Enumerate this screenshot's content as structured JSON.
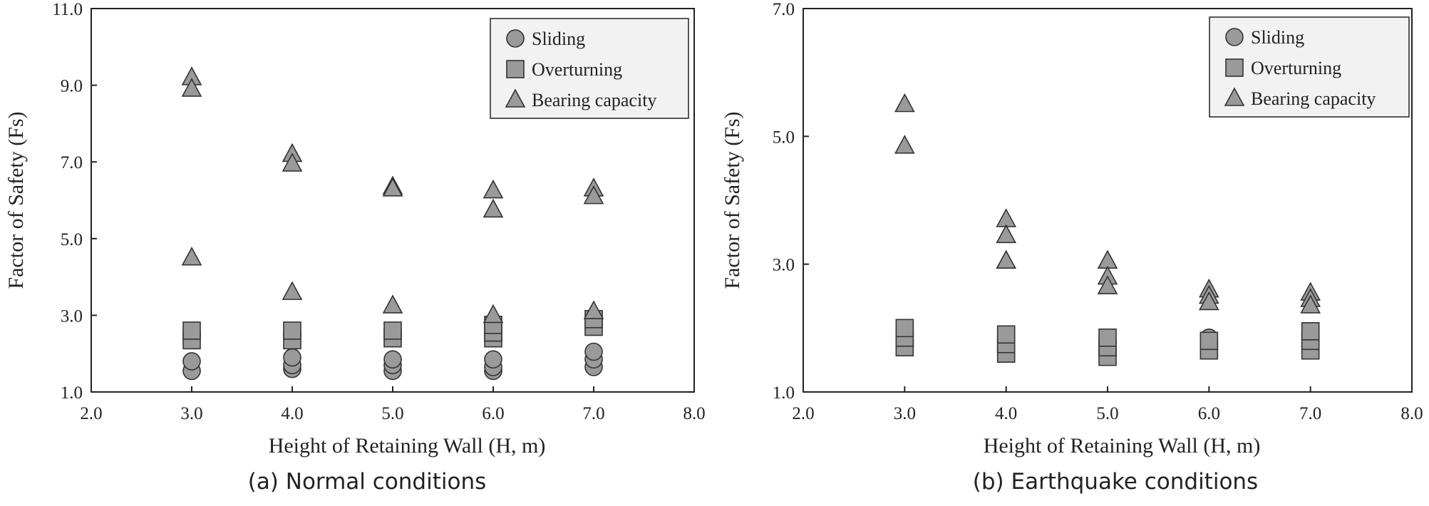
{
  "chart_data": [
    {
      "type": "scatter",
      "caption": "(a) Normal conditions",
      "xlabel": "Height of Retaining Wall (H, m)",
      "ylabel": "Factor of Safety (Fs)",
      "xlim": [
        2.0,
        8.0
      ],
      "ylim": [
        1.0,
        11.0
      ],
      "xticks": [
        "2.0",
        "3.0",
        "4.0",
        "5.0",
        "6.0",
        "7.0",
        "8.0"
      ],
      "yticks": [
        "1.0",
        "3.0",
        "5.0",
        "7.0",
        "9.0",
        "11.0"
      ],
      "legend_position": "top-right",
      "grid": false,
      "series": [
        {
          "name": "Sliding",
          "marker": "circle",
          "points": [
            [
              3,
              1.55
            ],
            [
              3,
              1.8
            ],
            [
              4,
              1.6
            ],
            [
              4,
              1.7
            ],
            [
              4,
              1.9
            ],
            [
              5,
              1.55
            ],
            [
              5,
              1.7
            ],
            [
              5,
              1.85
            ],
            [
              6,
              1.55
            ],
            [
              6,
              1.65
            ],
            [
              6,
              1.85
            ],
            [
              7,
              1.65
            ],
            [
              7,
              1.85
            ],
            [
              7,
              2.05
            ]
          ]
        },
        {
          "name": "Overturning",
          "marker": "square",
          "points": [
            [
              3,
              2.35
            ],
            [
              3,
              2.6
            ],
            [
              4,
              2.35
            ],
            [
              4,
              2.6
            ],
            [
              5,
              2.4
            ],
            [
              5,
              2.6
            ],
            [
              6,
              2.4
            ],
            [
              6,
              2.55
            ],
            [
              6,
              2.75
            ],
            [
              7,
              2.7
            ],
            [
              7,
              2.9
            ]
          ]
        },
        {
          "name": "Bearing capacity",
          "marker": "triangle",
          "points": [
            [
              3,
              9.2
            ],
            [
              3,
              8.9
            ],
            [
              3,
              4.5
            ],
            [
              4,
              7.2
            ],
            [
              4,
              6.95
            ],
            [
              4,
              3.6
            ],
            [
              5,
              6.35
            ],
            [
              5,
              6.3
            ],
            [
              5,
              3.25
            ],
            [
              6,
              6.25
            ],
            [
              6,
              5.75
            ],
            [
              6,
              3.0
            ],
            [
              7,
              6.3
            ],
            [
              7,
              6.1
            ],
            [
              7,
              3.1
            ]
          ]
        }
      ]
    },
    {
      "type": "scatter",
      "caption": "(b) Earthquake conditions",
      "xlabel": "Height of Retaining Wall (H, m)",
      "ylabel": "Factor of Safety (Fs)",
      "xlim": [
        2.0,
        8.0
      ],
      "ylim": [
        1.0,
        7.0
      ],
      "xticks": [
        "2.0",
        "3.0",
        "4.0",
        "5.0",
        "6.0",
        "7.0",
        "8.0"
      ],
      "yticks": [
        "1.0",
        "3.0",
        "5.0",
        "7.0"
      ],
      "legend_position": "top-right",
      "grid": false,
      "series": [
        {
          "name": "Sliding",
          "marker": "circle",
          "points": [
            [
              3,
              1.75
            ],
            [
              3,
              1.9
            ],
            [
              4,
              1.7
            ],
            [
              4,
              1.8
            ],
            [
              5,
              1.65
            ],
            [
              5,
              1.75
            ],
            [
              6,
              1.75
            ],
            [
              6,
              1.85
            ],
            [
              7,
              1.8
            ],
            [
              7,
              1.95
            ]
          ]
        },
        {
          "name": "Overturning",
          "marker": "square",
          "points": [
            [
              3,
              1.7
            ],
            [
              3,
              1.85
            ],
            [
              3,
              2.0
            ],
            [
              4,
              1.6
            ],
            [
              4,
              1.75
            ],
            [
              4,
              1.9
            ],
            [
              5,
              1.55
            ],
            [
              5,
              1.7
            ],
            [
              5,
              1.85
            ],
            [
              6,
              1.65
            ],
            [
              6,
              1.8
            ],
            [
              7,
              1.65
            ],
            [
              7,
              1.8
            ],
            [
              7,
              1.95
            ]
          ]
        },
        {
          "name": "Bearing capacity",
          "marker": "triangle",
          "points": [
            [
              3,
              5.5
            ],
            [
              3,
              4.85
            ],
            [
              4,
              3.7
            ],
            [
              4,
              3.45
            ],
            [
              4,
              3.05
            ],
            [
              5,
              3.05
            ],
            [
              5,
              2.8
            ],
            [
              5,
              2.65
            ],
            [
              6,
              2.6
            ],
            [
              6,
              2.5
            ],
            [
              6,
              2.4
            ],
            [
              7,
              2.55
            ],
            [
              7,
              2.45
            ],
            [
              7,
              2.35
            ]
          ]
        }
      ]
    }
  ],
  "colors": {
    "marker_fill": "#9a9a9a",
    "marker_stroke": "#333333",
    "axis": "#222222"
  }
}
